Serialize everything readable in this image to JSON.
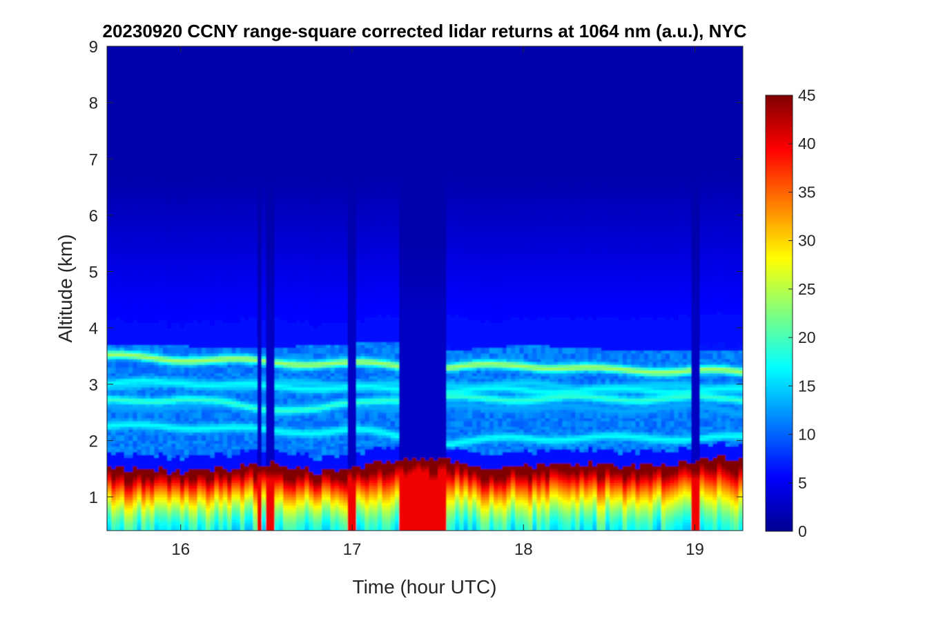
{
  "chart_data": {
    "type": "heatmap",
    "title": "20230920 CCNY range-square corrected lidar returns at 1064 nm (a.u.), NYC",
    "xlabel": "Time (hour UTC)",
    "ylabel": "Altitude (km)",
    "xlim": [
      15.57,
      19.28
    ],
    "ylim": [
      0.4,
      9
    ],
    "x_ticks": [
      16,
      17,
      18,
      19
    ],
    "y_ticks": [
      1,
      2,
      3,
      4,
      5,
      6,
      7,
      8,
      9
    ],
    "colorbar": {
      "colormap": "jet",
      "range": [
        0,
        45
      ],
      "ticks": [
        0,
        5,
        10,
        15,
        20,
        25,
        30,
        35,
        40,
        45
      ]
    },
    "features": {
      "boundary_layer_top_km": [
        [
          15.57,
          1.55
        ],
        [
          15.8,
          1.5
        ],
        [
          16.0,
          1.45
        ],
        [
          16.3,
          1.5
        ],
        [
          16.5,
          1.6
        ],
        [
          16.8,
          1.45
        ],
        [
          17.0,
          1.5
        ],
        [
          17.3,
          1.7
        ],
        [
          17.6,
          1.65
        ],
        [
          17.8,
          1.5
        ],
        [
          18.0,
          1.55
        ],
        [
          18.3,
          1.6
        ],
        [
          18.6,
          1.55
        ],
        [
          18.9,
          1.6
        ],
        [
          19.1,
          1.7
        ],
        [
          19.28,
          1.7
        ]
      ],
      "aerosol_layers_km": [
        {
          "x": [
            15.57,
            16.5,
            17.2,
            17.6,
            18.0,
            18.5,
            19.0,
            19.28
          ],
          "y": [
            3.5,
            3.4,
            3.35,
            3.3,
            3.35,
            3.25,
            3.25,
            3.2
          ],
          "value": 24
        },
        {
          "x": [
            15.57,
            16.0,
            16.5,
            17.0,
            17.2
          ],
          "y": [
            3.0,
            3.05,
            2.95,
            2.95,
            2.9
          ],
          "value": 17
        },
        {
          "x": [
            15.57,
            16.0,
            16.4,
            16.8,
            17.2
          ],
          "y": [
            2.7,
            2.75,
            2.6,
            2.55,
            2.75
          ],
          "value": 19
        },
        {
          "x": [
            15.57,
            16.2,
            16.6,
            17.0,
            17.5,
            18.0,
            18.5,
            19.0,
            19.28
          ],
          "y": [
            2.25,
            2.25,
            2.15,
            2.2,
            1.95,
            2.05,
            2.05,
            2.05,
            2.05
          ],
          "value": 17
        },
        {
          "x": [
            17.6,
            18.0,
            18.5,
            19.0,
            19.28
          ],
          "y": [
            3.0,
            3.0,
            2.9,
            3.0,
            2.9
          ],
          "value": 15
        },
        {
          "x": [
            17.6,
            18.0,
            18.5,
            19.0,
            19.28
          ],
          "y": [
            2.6,
            2.6,
            2.55,
            2.6,
            2.5
          ],
          "value": 13
        }
      ],
      "elevated_layer_top_km": [
        [
          15.57,
          3.7
        ],
        [
          16.5,
          3.65
        ],
        [
          17.2,
          3.75
        ],
        [
          17.6,
          3.6
        ],
        [
          18.0,
          3.7
        ],
        [
          18.6,
          3.6
        ],
        [
          19.28,
          3.6
        ]
      ],
      "low_signal_periods_hour": [
        [
          17.28,
          17.54
        ],
        [
          16.44,
          16.47
        ],
        [
          16.51,
          16.54
        ],
        [
          16.98,
          17.02
        ],
        [
          18.99,
          19.04
        ]
      ]
    }
  }
}
